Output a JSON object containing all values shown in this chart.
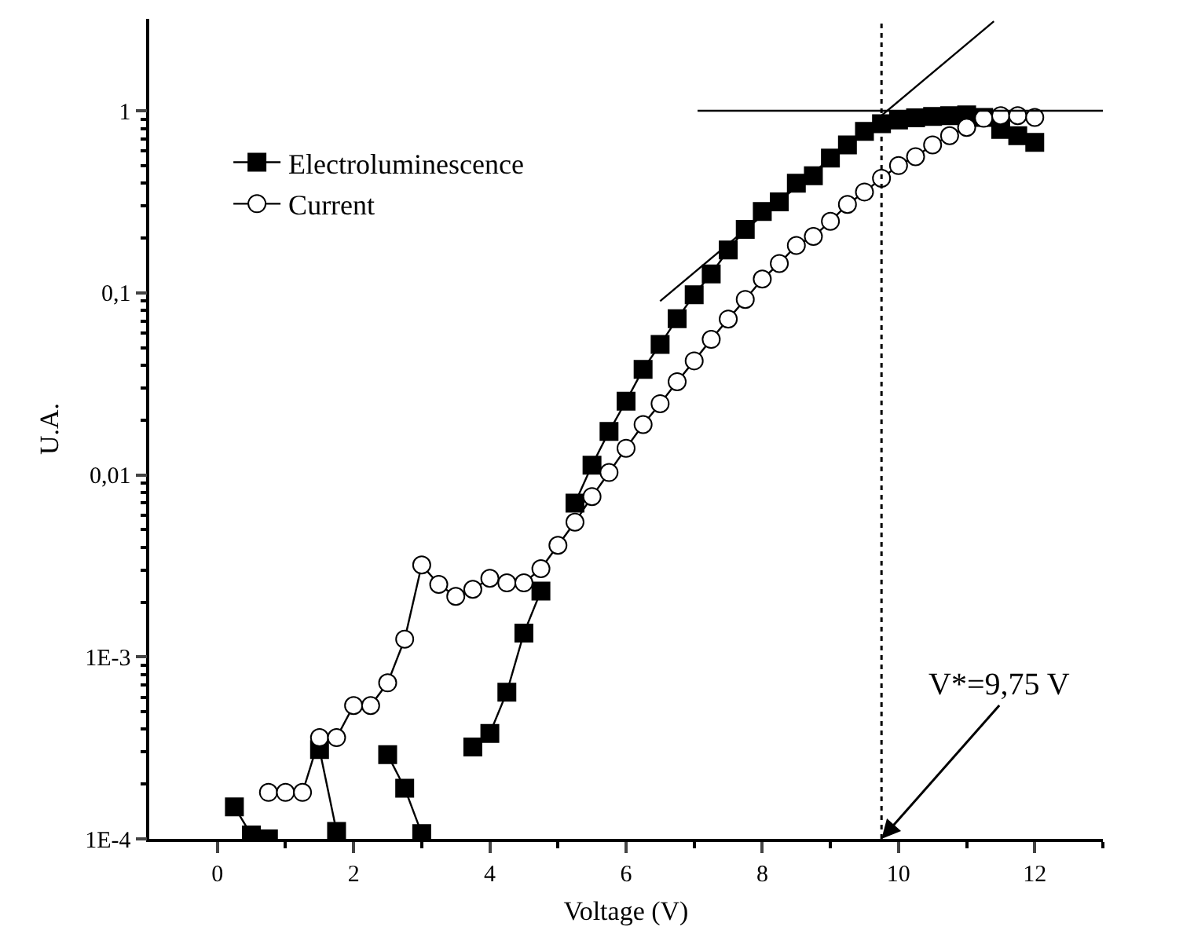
{
  "chart_data": {
    "type": "line",
    "xlabel": "Voltage (V)",
    "ylabel": "U.A.",
    "xlim": [
      -1,
      13
    ],
    "ylim": [
      0.0001,
      3.2
    ],
    "log": "y",
    "grid": false,
    "legend": "top left",
    "line_style": "solid",
    "xticks": [
      0,
      {
        "value": 1,
        "label": null
      },
      2,
      {
        "value": 3,
        "label": null
      },
      4,
      {
        "value": 5,
        "label": null
      },
      6,
      {
        "value": 7,
        "label": null
      },
      8,
      {
        "value": 9,
        "label": null
      },
      10,
      {
        "value": 11,
        "label": null
      },
      12,
      {
        "value": 13,
        "label": null
      }
    ],
    "yticks": [
      {
        "value": 0.0001,
        "label": "1E-4"
      },
      {
        "value": 0.001,
        "label": "1E-3"
      },
      {
        "value": 0.01,
        "label": "0,01"
      },
      {
        "value": 0.1,
        "label": "0,1"
      },
      {
        "value": 1,
        "label": "1"
      },
      {
        "value": 0.0002,
        "label": null
      },
      {
        "value": 0.0003,
        "label": null
      },
      {
        "value": 0.0004,
        "label": null
      },
      {
        "value": 0.0005,
        "label": null
      },
      {
        "value": 0.0006,
        "label": null
      },
      {
        "value": 0.0007,
        "label": null
      },
      {
        "value": 0.0008,
        "label": null
      },
      {
        "value": 0.0009,
        "label": null
      },
      {
        "value": 0.002,
        "label": null
      },
      {
        "value": 0.003,
        "label": null
      },
      {
        "value": 0.004,
        "label": null
      },
      {
        "value": 0.005,
        "label": null
      },
      {
        "value": 0.006,
        "label": null
      },
      {
        "value": 0.007,
        "label": null
      },
      {
        "value": 0.008,
        "label": null
      },
      {
        "value": 0.009,
        "label": null
      },
      {
        "value": 0.02,
        "label": null
      },
      {
        "value": 0.03,
        "label": null
      },
      {
        "value": 0.04,
        "label": null
      },
      {
        "value": 0.05,
        "label": null
      },
      {
        "value": 0.06,
        "label": null
      },
      {
        "value": 0.07,
        "label": null
      },
      {
        "value": 0.08,
        "label": null
      },
      {
        "value": 0.09,
        "label": null
      },
      {
        "value": 0.2,
        "label": null
      },
      {
        "value": 0.3,
        "label": null
      },
      {
        "value": 0.4,
        "label": null
      },
      {
        "value": 0.5,
        "label": null
      },
      {
        "value": 0.6,
        "label": null
      },
      {
        "value": 0.7,
        "label": null
      },
      {
        "value": 0.8,
        "label": null
      },
      {
        "value": 0.9,
        "label": null
      }
    ],
    "series": [
      {
        "name": "Electroluminescence",
        "color": "#000000",
        "marker": "square",
        "x": [
          0.25,
          0.5,
          0.75,
          1.0,
          1.25,
          1.5,
          1.75,
          2.0,
          2.25,
          2.5,
          2.75,
          3.0,
          3.25,
          3.5,
          3.75,
          4.0,
          4.25,
          4.5,
          4.75,
          5.0,
          5.25,
          5.5,
          5.75,
          6.0,
          6.25,
          6.5,
          6.75,
          7.0,
          7.25,
          7.5,
          7.75,
          8.0,
          8.25,
          8.5,
          8.75,
          9.0,
          9.25,
          9.5,
          9.75,
          10.0,
          10.25,
          10.5,
          10.75,
          11.0,
          11.25,
          11.5,
          11.75,
          12.0
        ],
        "values": [
          0.00015,
          0.000105,
          0.0001,
          null,
          null,
          0.00031,
          0.00011,
          null,
          null,
          0.00029,
          0.00019,
          0.000107,
          null,
          null,
          0.00032,
          0.00038,
          0.00064,
          0.00135,
          0.0023,
          null,
          0.007,
          0.0113,
          0.0173,
          0.0254,
          0.038,
          0.052,
          0.072,
          0.0975,
          0.127,
          0.172,
          0.223,
          0.28,
          0.316,
          0.4,
          0.44,
          0.55,
          0.65,
          0.77,
          0.85,
          0.89,
          0.915,
          0.93,
          0.94,
          0.95,
          0.92,
          0.79,
          0.73,
          0.67
        ]
      },
      {
        "name": "Current",
        "color": "#000000",
        "marker": "circle",
        "x": [
          0.75,
          1.0,
          1.25,
          1.5,
          1.75,
          2.0,
          2.25,
          2.5,
          2.75,
          3.0,
          3.25,
          3.5,
          3.75,
          4.0,
          4.25,
          4.5,
          4.75,
          5.0,
          5.25,
          5.5,
          5.75,
          6.0,
          6.25,
          6.5,
          6.75,
          7.0,
          7.25,
          7.5,
          7.75,
          8.0,
          8.25,
          8.5,
          8.75,
          9.0,
          9.25,
          9.5,
          9.75,
          10.0,
          10.25,
          10.5,
          10.75,
          11.0,
          11.25,
          11.5,
          11.75,
          12.0
        ],
        "values": [
          0.00018,
          0.00018,
          0.00018,
          0.00036,
          0.00036,
          0.00054,
          0.00054,
          0.00072,
          0.00125,
          0.0032,
          0.0025,
          0.00215,
          0.00235,
          0.0027,
          0.00255,
          0.00255,
          0.00305,
          0.0041,
          0.0055,
          0.0076,
          0.0103,
          0.014,
          0.0189,
          0.0246,
          0.0325,
          0.0423,
          0.0555,
          0.0718,
          0.092,
          0.119,
          0.145,
          0.182,
          0.204,
          0.247,
          0.306,
          0.358,
          0.426,
          0.5,
          0.56,
          0.65,
          0.73,
          0.81,
          0.91,
          0.94,
          0.94,
          0.92
        ]
      },
      {
        "type": "line",
        "color": "#000000",
        "marker": "none",
        "x": [
          6.5,
          11.4
        ],
        "values": [
          0.09,
          3.1
        ]
      },
      {
        "type": "line",
        "color": "#000000",
        "marker": "none",
        "x": [
          7.05,
          13
        ],
        "values": [
          1,
          1
        ]
      }
    ],
    "ref_lines": [
      {
        "axis": "x",
        "value": 9.75,
        "color": "#000000",
        "line_style": "dotted"
      }
    ],
    "annotations": [
      {
        "text": "V*=9,75 V",
        "x": 9.75,
        "y": 0.0001
      }
    ]
  }
}
